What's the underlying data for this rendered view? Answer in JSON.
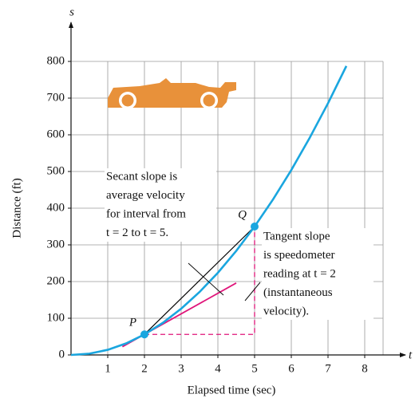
{
  "chart_data": {
    "type": "line",
    "x_label": "Elapsed time (sec)",
    "y_label": "Distance (ft)",
    "x_axis_symbol": "t",
    "y_axis_symbol": "s",
    "xlim": [
      0,
      8.5
    ],
    "ylim": [
      0,
      800
    ],
    "xticks": [
      1,
      2,
      3,
      4,
      5,
      6,
      7,
      8
    ],
    "yticks": [
      0,
      100,
      200,
      300,
      400,
      500,
      600,
      700,
      800
    ],
    "grid": true,
    "curve": {
      "color": "#1aa6df",
      "x": [
        0,
        0.5,
        1,
        1.5,
        2,
        2.5,
        3,
        3.5,
        4,
        4.5,
        5,
        5.5,
        6,
        6.5,
        7,
        7.5
      ],
      "y": [
        0,
        3.5,
        14,
        31.5,
        56,
        87.5,
        126,
        171.5,
        224,
        283.5,
        350,
        423.5,
        504,
        591.5,
        686,
        787.5
      ]
    },
    "tangent": {
      "color": "#e0157a",
      "x": [
        1.4,
        4.5
      ],
      "y": [
        22.4,
        196
      ]
    },
    "secant": {
      "color": "#000000",
      "x": [
        2,
        5
      ],
      "y": [
        56,
        350
      ]
    },
    "rise_run": {
      "color": "#e0157a",
      "x": [
        2,
        5,
        5
      ],
      "y": [
        56,
        56,
        350
      ]
    },
    "points": [
      {
        "label": "P",
        "x": 2,
        "y": 56,
        "color": "#1aa6df"
      },
      {
        "label": "Q",
        "x": 5,
        "y": 350,
        "color": "#1aa6df"
      }
    ],
    "annotations": [
      {
        "lines": [
          "Secant slope is",
          "average velocity",
          "for interval from",
          "t = 2 to t = 5."
        ]
      },
      {
        "lines": [
          "Tangent slope",
          "is speedometer",
          "reading at t = 2",
          "(instantaneous",
          "velocity)."
        ]
      }
    ]
  }
}
